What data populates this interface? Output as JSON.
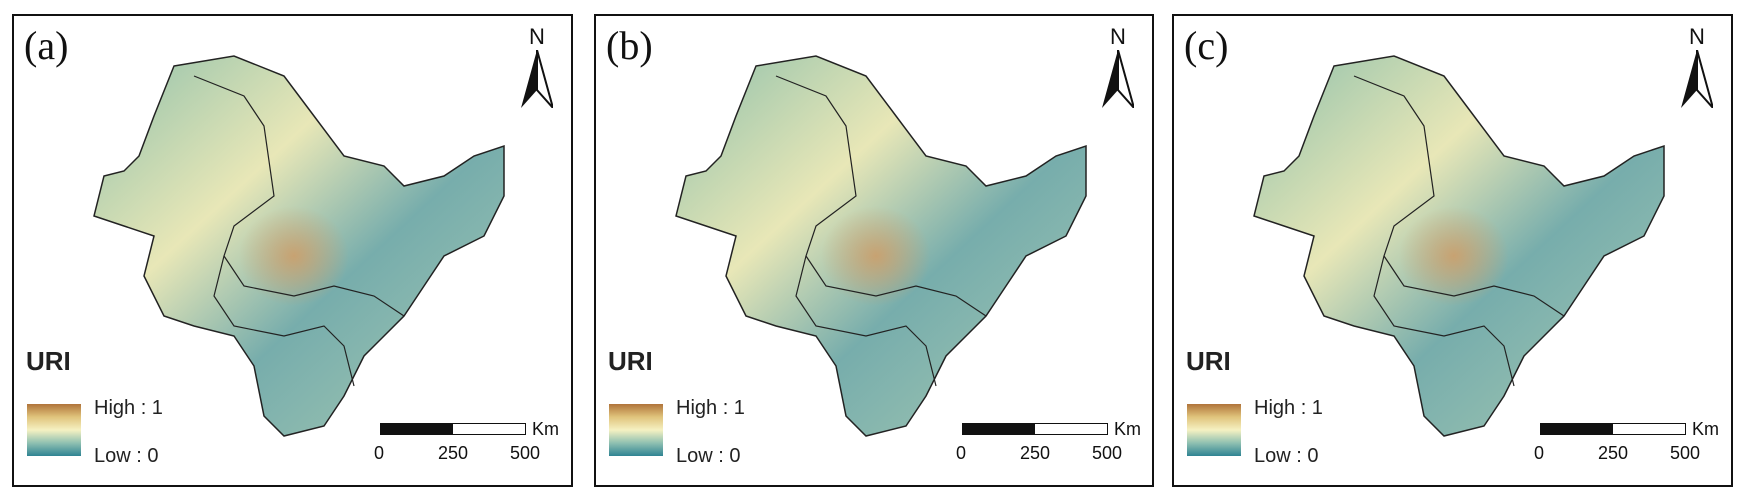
{
  "panels": [
    {
      "letter": "(a)"
    },
    {
      "letter": "(b)"
    },
    {
      "letter": "(c)"
    }
  ],
  "north_label": "N",
  "legend": {
    "title": "URI",
    "high_label": "High : 1",
    "low_label": "Low : 0",
    "ramp_colors": [
      "#b0743a",
      "#e0c47c",
      "#f5f1c2",
      "#8fc0b1",
      "#2f8493"
    ]
  },
  "scale_bar": {
    "unit": "Km",
    "ticks": [
      "0",
      "250",
      "500"
    ]
  }
}
